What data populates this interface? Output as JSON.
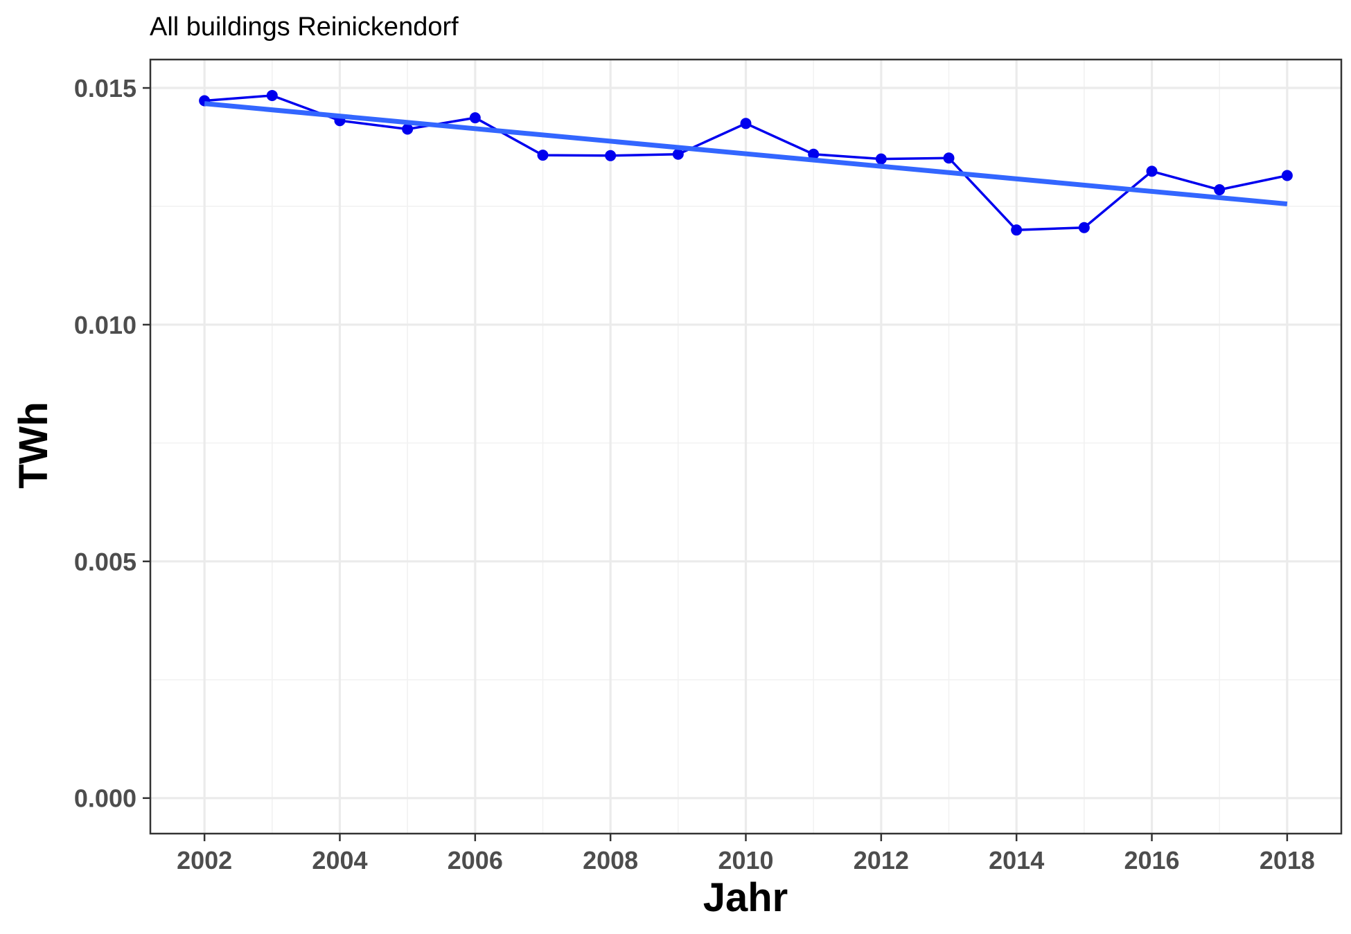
{
  "chart_data": {
    "type": "line",
    "title": "All buildings Reinickendorf",
    "xlabel": "Jahr",
    "ylabel": "TWh",
    "x": [
      2002,
      2003,
      2004,
      2005,
      2006,
      2007,
      2008,
      2009,
      2010,
      2011,
      2012,
      2013,
      2014,
      2015,
      2016,
      2017,
      2018
    ],
    "series": [
      {
        "values": [
          0.01473,
          0.01484,
          0.01431,
          0.01413,
          0.01437,
          0.01358,
          0.01357,
          0.0136,
          0.01425,
          0.0136,
          0.0135,
          0.01352,
          0.012,
          0.01205,
          0.01324,
          0.01285,
          0.01315
        ],
        "color": "#0000ee"
      }
    ],
    "trend": {
      "type": "linear",
      "from": [
        2002,
        0.01467
      ],
      "to": [
        2018,
        0.01255
      ],
      "color": "#3366ff"
    },
    "xlim": [
      2001.2,
      2018.8
    ],
    "ylim": [
      -0.00075,
      0.0156
    ],
    "x_ticks": [
      2002,
      2004,
      2006,
      2008,
      2010,
      2012,
      2014,
      2016,
      2018
    ],
    "x_tick_labels": [
      "2002",
      "2004",
      "2006",
      "2008",
      "2010",
      "2012",
      "2014",
      "2016",
      "2018"
    ],
    "y_ticks": [
      0.0,
      0.005,
      0.01,
      0.015
    ],
    "y_tick_labels": [
      "0.000",
      "0.005",
      "0.010",
      "0.015"
    ],
    "grid": true,
    "legend": "none"
  }
}
